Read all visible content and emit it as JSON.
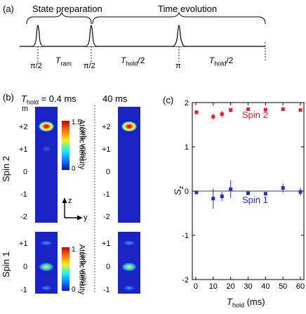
{
  "panel_a": {
    "label": "(a)",
    "phase1": "State preparation",
    "phase2": "Time evolution",
    "pulse1": "π/2",
    "interval1_sym": "T",
    "interval1_sub": "ram",
    "pulse2": "π/2",
    "interval2_sym": "T",
    "interval2_sub": "hold",
    "interval2_frac": "/2",
    "pulse3": "π",
    "interval3_sym": "T",
    "interval3_sub": "hold",
    "interval3_frac": "/2"
  },
  "panel_b": {
    "label": "(b)",
    "thold_sym": "T",
    "thold_sub": "hold",
    "thold_eq": " = 0.4 ms",
    "col2_label": "40 ms",
    "m_label": "m",
    "spin2_label": "Spin 2",
    "spin1_label": "Spin 1",
    "spin2_m": [
      "+2",
      "+1",
      "0",
      "-1",
      "-2"
    ],
    "spin2_m_right": [
      "+2",
      "+1",
      "0",
      "-1",
      "-2"
    ],
    "spin1_m": [
      "+1",
      "0",
      "-1"
    ],
    "spin1_m_right": [
      "+1",
      "0",
      "-1"
    ],
    "cbar1_max": "1.5",
    "cbar1_min": "0",
    "cbar2_max": "1",
    "cbar2_min": "0",
    "cbar_title1": "Atomic density",
    "cbar_title2": "(arb. units)",
    "axis_z": "z",
    "axis_y": "y"
  },
  "panel_c": {
    "label": "(c)",
    "chart_data": {
      "type": "scatter",
      "xlabel_sym": "T",
      "xlabel_sub": "hold",
      "xlabel_unit": " (ms)",
      "ylabel_sym": "S",
      "ylabel_sub": "z",
      "xlim": [
        -2,
        62
      ],
      "ylim": [
        -2,
        2
      ],
      "xticks": [
        0,
        10,
        20,
        30,
        40,
        50,
        60
      ],
      "yticks": [
        -2,
        -1,
        0,
        1,
        2
      ],
      "series": [
        {
          "name": "Spin 2",
          "color": "#e8202a",
          "points": [
            {
              "x": 0.4,
              "y": 1.78,
              "err": 0.05
            },
            {
              "x": 10,
              "y": 1.68,
              "err": 0.07
            },
            {
              "x": 15,
              "y": 1.74,
              "err": 0.08
            },
            {
              "x": 20,
              "y": 1.83,
              "err": 0.05
            },
            {
              "x": 30,
              "y": 1.85,
              "err": 0.03
            },
            {
              "x": 40,
              "y": 1.84,
              "err": 0.03
            },
            {
              "x": 50,
              "y": 1.85,
              "err": 0.02
            },
            {
              "x": 60,
              "y": 1.83,
              "err": 0.02
            }
          ]
        },
        {
          "name": "Spin 1",
          "color": "#2030c8",
          "points": [
            {
              "x": 0.4,
              "y": -0.03,
              "err": 0.04
            },
            {
              "x": 10,
              "y": -0.17,
              "err": 0.23
            },
            {
              "x": 15,
              "y": -0.12,
              "err": 0.1
            },
            {
              "x": 20,
              "y": 0.04,
              "err": 0.2
            },
            {
              "x": 30,
              "y": -0.05,
              "err": 0.03
            },
            {
              "x": 40,
              "y": -0.06,
              "err": 0.03
            },
            {
              "x": 50,
              "y": 0.07,
              "err": 0.1
            },
            {
              "x": 60,
              "y": -0.02,
              "err": 0.09
            }
          ]
        }
      ]
    }
  },
  "colors": {
    "panel_bg": "#1822c8",
    "blob_hot": "#d81818",
    "spin2": "#e8202a",
    "spin1": "#2030c8"
  }
}
